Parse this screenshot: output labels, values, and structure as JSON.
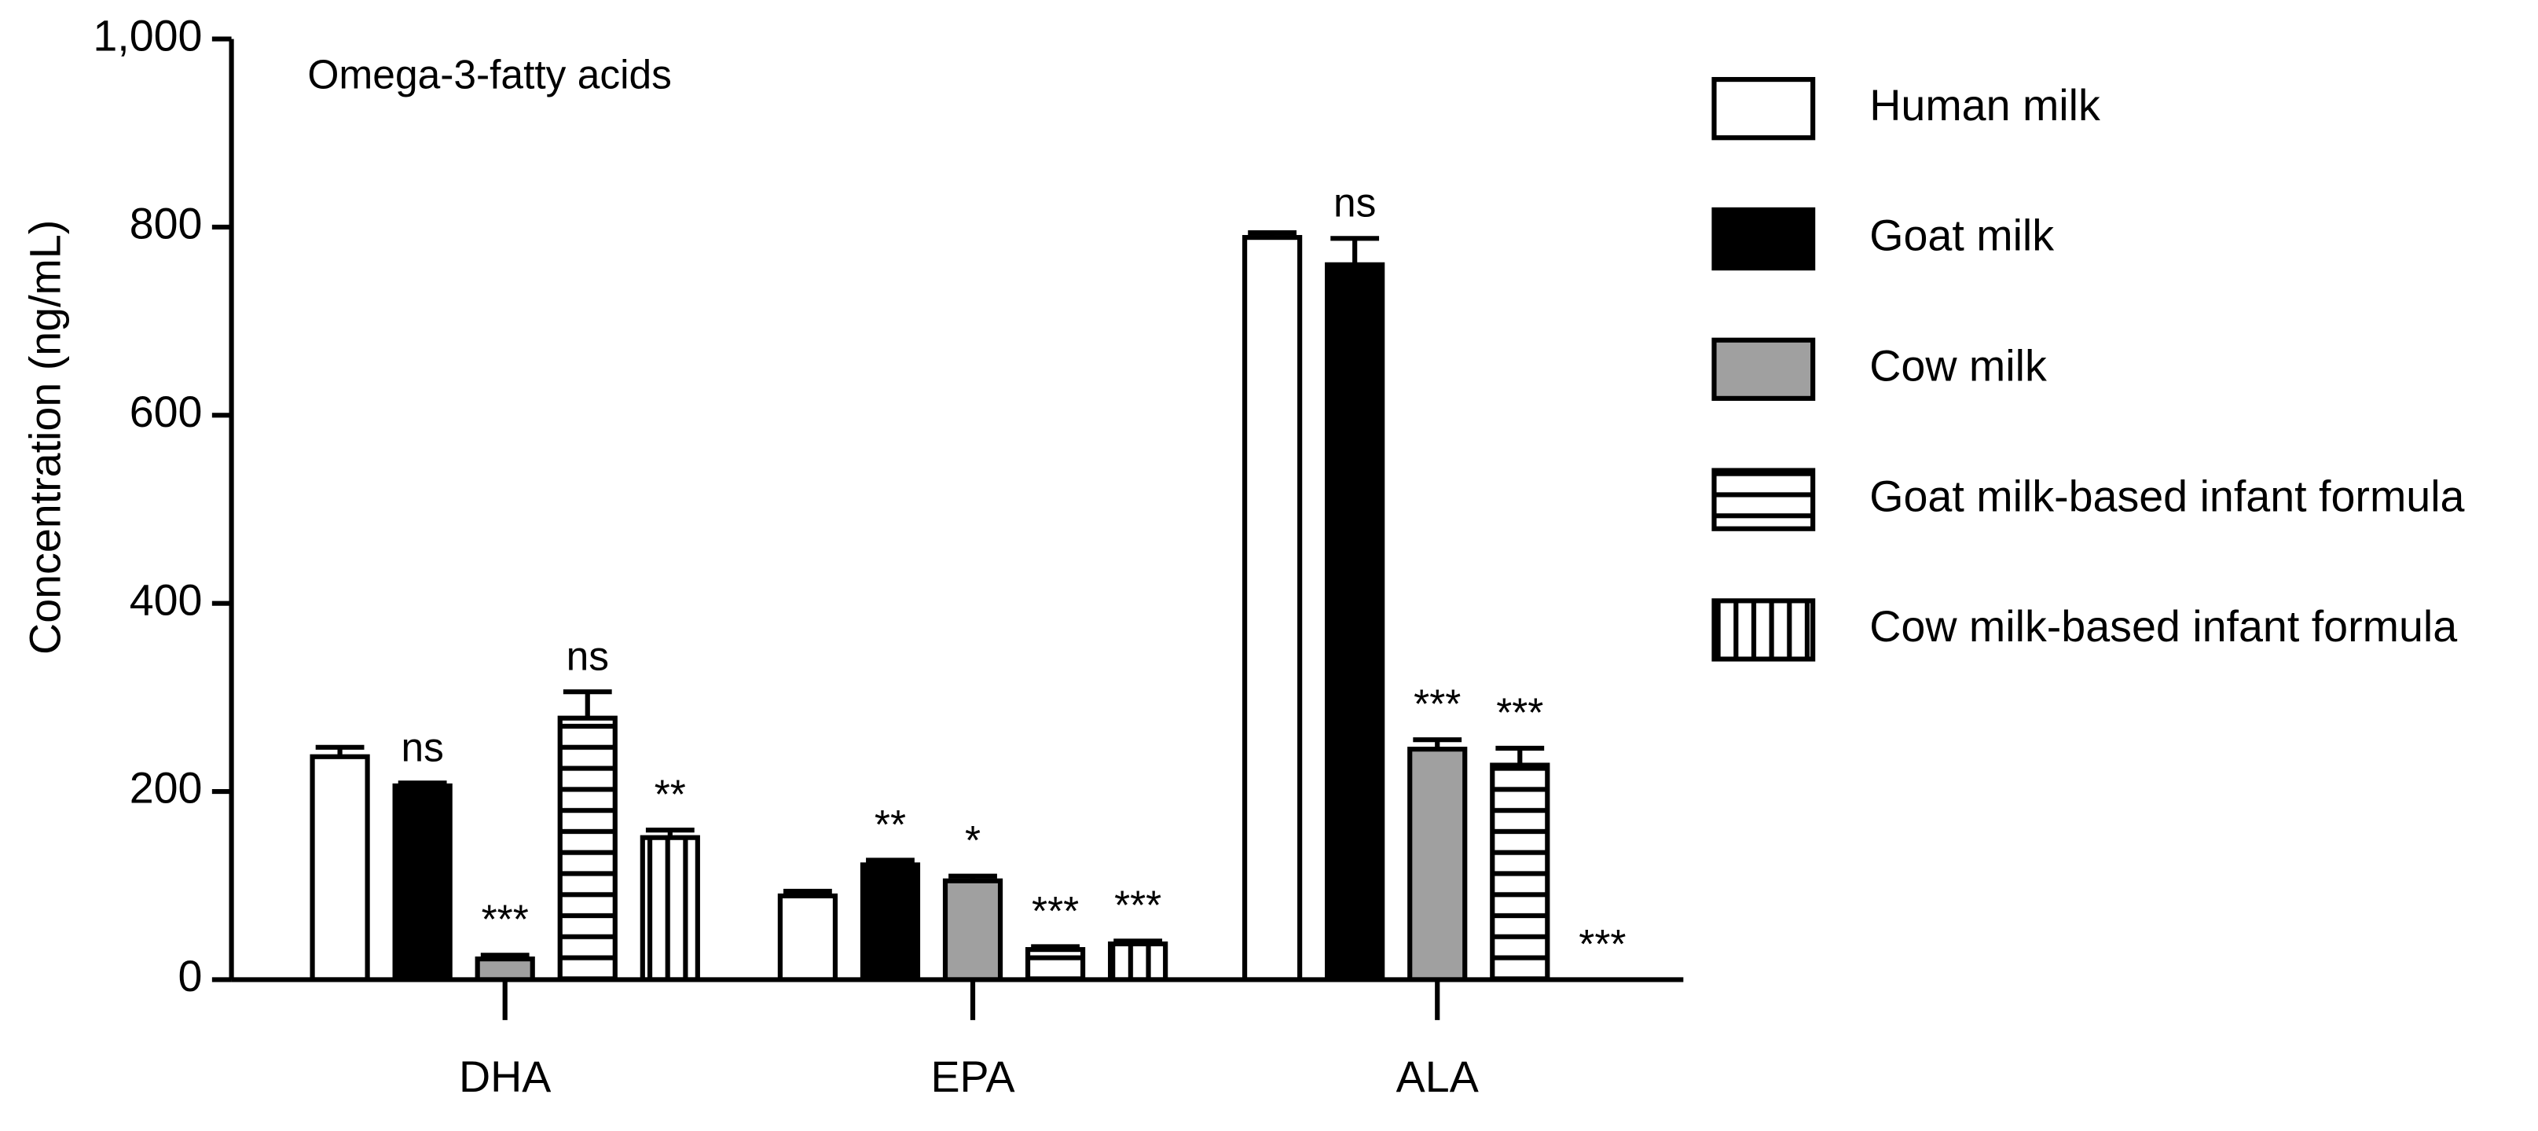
{
  "chart_data": {
    "type": "bar",
    "title": "Omega-3-fatty acids",
    "ylabel": "Concentration (ng/mL)",
    "categories": [
      "DHA",
      "EPA",
      "ALA"
    ],
    "ylim": [
      0,
      1000
    ],
    "yticks": [
      0,
      200,
      400,
      600,
      800,
      {
        "value": 1000,
        "label": "1,000"
      }
    ],
    "legend": "right",
    "series": [
      {
        "name": "Human milk",
        "color": "#ffffff",
        "pattern": "solid",
        "values": [
          237,
          89,
          789
        ],
        "errors": [
          10,
          5,
          5
        ]
      },
      {
        "name": "Goat milk",
        "color": "#000000",
        "pattern": "solid",
        "values": [
          206,
          122,
          760
        ],
        "errors": [
          3,
          5,
          28
        ],
        "annotations": [
          "ns",
          "**",
          "ns"
        ]
      },
      {
        "name": "Cow milk",
        "color": "#a0a0a0",
        "pattern": "solid",
        "values": [
          22,
          105,
          245
        ],
        "errors": [
          4,
          5,
          10
        ],
        "annotations": [
          "***",
          "*",
          "***"
        ]
      },
      {
        "name": "Goat milk-based infant formula",
        "color": "#ffffff",
        "pattern": "horizontal",
        "values": [
          278,
          32,
          228
        ],
        "errors": [
          28,
          3,
          18
        ],
        "annotations": [
          "ns",
          "***",
          "***"
        ]
      },
      {
        "name": "Cow milk-based infant formula",
        "color": "#ffffff",
        "pattern": "vertical",
        "values": [
          151,
          38,
          0
        ],
        "errors": [
          8,
          3,
          0
        ],
        "annotations": [
          "**",
          "***",
          "***"
        ]
      }
    ]
  }
}
